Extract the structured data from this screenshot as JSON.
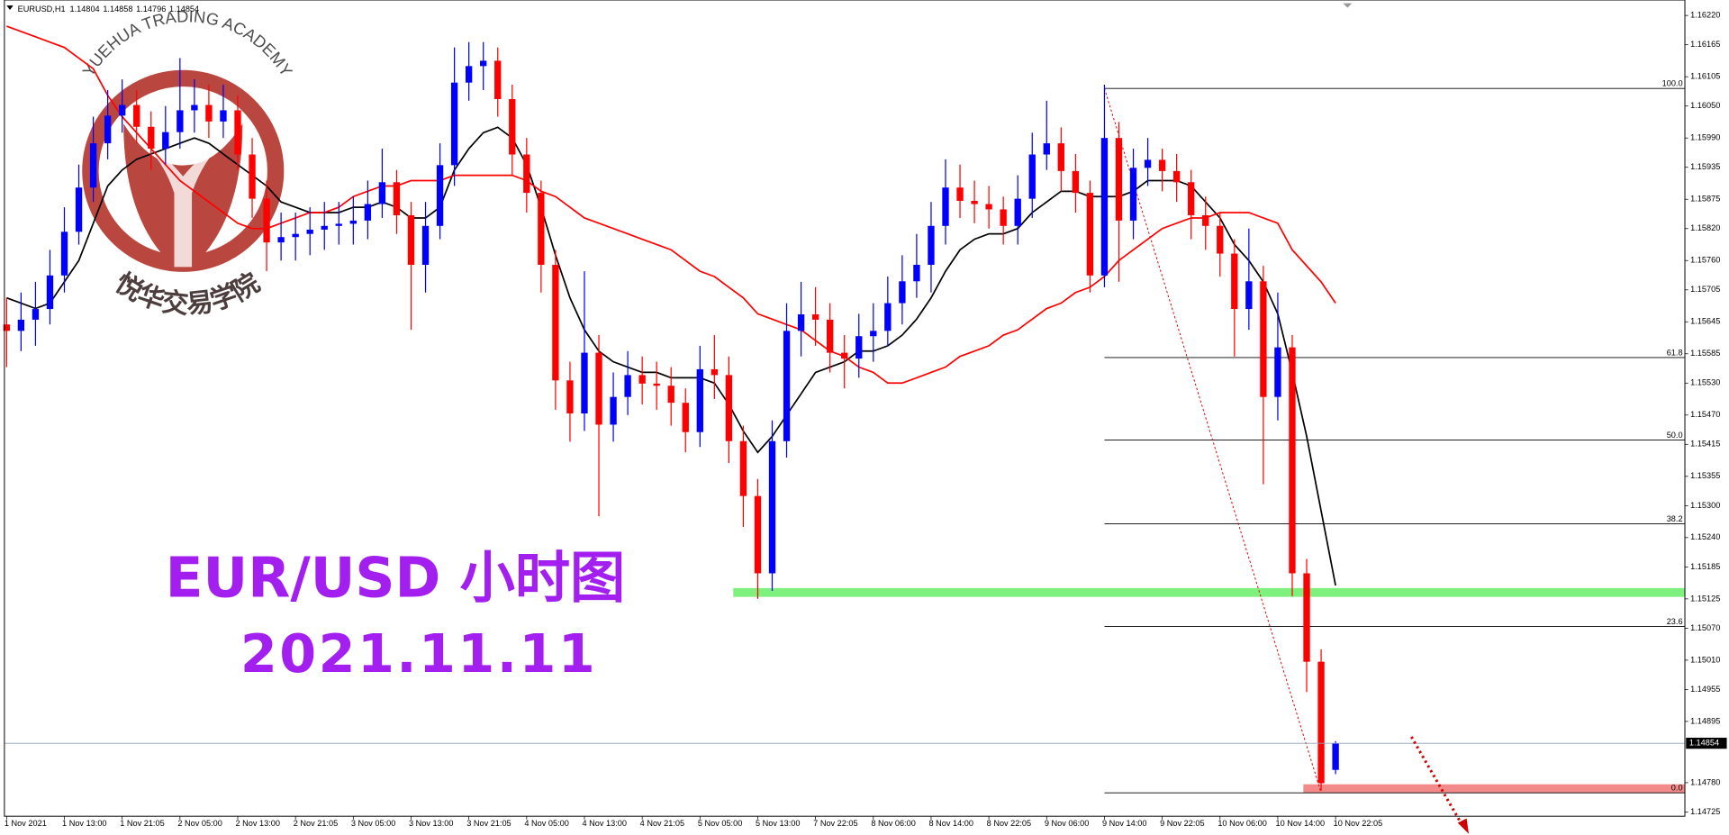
{
  "chart_data": {
    "type": "candlestick",
    "symbol": "EURUSD,H1",
    "title": "EUR/USD 小时图",
    "subtitle": "2021.11.11",
    "categories": [
      "1 Nov 2021",
      null,
      null,
      null,
      "1 Nov 13:00",
      null,
      null,
      null,
      "1 Nov 21:05",
      null,
      null,
      null,
      "2 Nov 05:00",
      null,
      null,
      null,
      "2 Nov 13:00",
      null,
      null,
      null,
      "2 Nov 21:05",
      null,
      null,
      null,
      "3 Nov 05:00",
      null,
      null,
      null,
      "3 Nov 13:00",
      null,
      null,
      null,
      "3 Nov 21:05",
      null,
      null,
      null,
      "4 Nov 05:00",
      null,
      null,
      null,
      "4 Nov 13:00",
      null,
      null,
      null,
      "4 Nov 21:05",
      null,
      null,
      null,
      "5 Nov 05:00",
      null,
      null,
      null,
      "5 Nov 13:00",
      null,
      null,
      null,
      "7 Nov 22:05",
      null,
      null,
      null,
      "8 Nov 06:00",
      null,
      null,
      null,
      "8 Nov 14:00",
      null,
      null,
      null,
      "8 Nov 22:05",
      null,
      null,
      null,
      "9 Nov 06:00",
      null,
      null,
      null,
      "9 Nov 14:00",
      null,
      null,
      null,
      "9 Nov 22:05",
      null,
      null,
      null,
      "10 Nov 06:00",
      null,
      null,
      null,
      "10 Nov 14:00",
      null,
      null,
      null,
      "10 Nov 22:05"
    ],
    "open": [
      1.1564,
      1.15628,
      1.15649,
      1.15669,
      1.15732,
      1.15814,
      1.15897,
      1.1598,
      1.16032,
      1.16052,
      1.16011,
      1.1597,
      1.16001,
      1.16042,
      1.16052,
      1.16021,
      1.16042,
      1.15959,
      1.15876,
      1.15794,
      1.15804,
      1.1581,
      1.15818,
      1.15825,
      1.15829,
      1.15835,
      1.15866,
      1.15907,
      1.15845,
      1.15752,
      1.15825,
      1.15939,
      1.16094,
      1.16125,
      1.16135,
      1.16063,
      1.15959,
      1.15887,
      1.15752,
      1.15535,
      1.15473,
      1.15587,
      1.15452,
      1.15504,
      1.15545,
      1.15529,
      1.15525,
      1.15493,
      1.15438,
      1.15556,
      1.15545,
      1.15421,
      1.15318,
      1.15173,
      1.15421,
      1.15628,
      1.15659,
      1.15649,
      1.15587,
      1.15576,
      1.15618,
      1.15628,
      1.1568,
      1.15721,
      1.15752,
      1.15825,
      1.15897,
      1.15872,
      1.15866,
      1.15856,
      1.15825,
      1.15876,
      1.15959,
      1.1598,
      1.15928,
      1.15887,
      1.15732,
      1.1599,
      1.15835,
      1.15934,
      1.15949,
      1.15928,
      1.15907,
      1.15845,
      1.15825,
      1.15773,
      1.15669,
      1.15721,
      1.15504,
      1.15597,
      1.15173,
      1.15007,
      1.14804
    ],
    "high": [
      1.1569,
      1.157,
      1.1572,
      1.1578,
      1.1586,
      1.1594,
      1.1603,
      1.1608,
      1.161,
      1.1608,
      1.1604,
      1.1605,
      1.1614,
      1.161,
      1.1609,
      1.1609,
      1.1607,
      1.1599,
      1.1591,
      1.1585,
      1.1585,
      1.1586,
      1.1587,
      1.1587,
      1.1588,
      1.1591,
      1.1597,
      1.1593,
      1.1587,
      1.1587,
      1.1598,
      1.1616,
      1.1617,
      1.1617,
      1.1616,
      1.1609,
      1.1599,
      1.1591,
      1.1578,
      1.1557,
      1.1574,
      1.1562,
      1.1555,
      1.1559,
      1.1558,
      1.1557,
      1.1556,
      1.1552,
      1.156,
      1.1562,
      1.1558,
      1.1545,
      1.1535,
      1.1546,
      1.1568,
      1.1572,
      1.1571,
      1.1568,
      1.1562,
      1.1566,
      1.1568,
      1.1573,
      1.1577,
      1.1581,
      1.1587,
      1.1595,
      1.1594,
      1.1591,
      1.159,
      1.1588,
      1.1592,
      1.16,
      1.1606,
      1.1601,
      1.1596,
      1.1591,
      1.1609,
      1.1602,
      1.1597,
      1.1599,
      1.1597,
      1.1596,
      1.1593,
      1.1588,
      1.1585,
      1.158,
      1.1582,
      1.1575,
      1.157,
      1.1562,
      1.152,
      1.1503,
      1.14858
    ],
    "low": [
      1.1556,
      1.1559,
      1.156,
      1.1564,
      1.157,
      1.1579,
      1.1587,
      1.1595,
      1.16,
      1.1598,
      1.1593,
      1.1594,
      1.1597,
      1.16,
      1.1599,
      1.1599,
      1.1593,
      1.1584,
      1.1574,
      1.1576,
      1.1576,
      1.1577,
      1.1578,
      1.1579,
      1.1579,
      1.158,
      1.1584,
      1.1581,
      1.1563,
      1.157,
      1.158,
      1.159,
      1.1606,
      1.1608,
      1.1603,
      1.1592,
      1.1585,
      1.157,
      1.1548,
      1.1542,
      1.1544,
      1.1528,
      1.1542,
      1.1547,
      1.1549,
      1.1548,
      1.1545,
      1.154,
      1.1541,
      1.155,
      1.1538,
      1.1526,
      1.15125,
      1.1514,
      1.1539,
      1.1558,
      1.156,
      1.1555,
      1.1552,
      1.1554,
      1.1557,
      1.156,
      1.1564,
      1.1569,
      1.157,
      1.1579,
      1.1584,
      1.1583,
      1.1582,
      1.1579,
      1.1579,
      1.1584,
      1.1593,
      1.1589,
      1.1585,
      1.157,
      1.1571,
      1.1572,
      1.158,
      1.159,
      1.1589,
      1.1587,
      1.158,
      1.1578,
      1.1573,
      1.1558,
      1.1563,
      1.1534,
      1.1546,
      1.1513,
      1.1495,
      1.14765,
      1.14796
    ],
    "close": [
      1.15628,
      1.15649,
      1.15669,
      1.15732,
      1.15814,
      1.15897,
      1.1598,
      1.16032,
      1.16052,
      1.16011,
      1.1597,
      1.16001,
      1.16042,
      1.16052,
      1.16021,
      1.16042,
      1.15959,
      1.15876,
      1.15794,
      1.15804,
      1.1581,
      1.15818,
      1.15825,
      1.15829,
      1.15835,
      1.15866,
      1.15907,
      1.15845,
      1.15752,
      1.15825,
      1.15939,
      1.16094,
      1.16125,
      1.16135,
      1.16063,
      1.15959,
      1.15887,
      1.15752,
      1.15535,
      1.15473,
      1.15587,
      1.15452,
      1.15504,
      1.15545,
      1.15529,
      1.15525,
      1.15493,
      1.15438,
      1.15556,
      1.15545,
      1.15421,
      1.15318,
      1.15173,
      1.15421,
      1.15628,
      1.15659,
      1.15649,
      1.15587,
      1.15576,
      1.15618,
      1.15628,
      1.1568,
      1.15721,
      1.15752,
      1.15825,
      1.15897,
      1.15872,
      1.15866,
      1.15856,
      1.15825,
      1.15876,
      1.15959,
      1.1598,
      1.15928,
      1.15887,
      1.15732,
      1.1599,
      1.15835,
      1.15934,
      1.15949,
      1.15928,
      1.15907,
      1.15845,
      1.15825,
      1.15773,
      1.15669,
      1.15721,
      1.15504,
      1.15597,
      1.15173,
      1.15007,
      1.14779,
      1.14854
    ],
    "up_color": "#0000ff",
    "down_color": "#ff0000",
    "series": [
      {
        "color": "#000000",
        "values": [
          1.1569,
          1.1568,
          1.1567,
          1.1568,
          1.1572,
          1.1576,
          1.1583,
          1.159,
          1.1593,
          1.1595,
          1.1596,
          1.1597,
          1.1598,
          1.1599,
          1.1598,
          1.1596,
          1.1594,
          1.1592,
          1.159,
          1.1587,
          1.1586,
          1.1585,
          1.1585,
          1.1585,
          1.1586,
          1.1586,
          1.1587,
          1.1586,
          1.1584,
          1.1584,
          1.1586,
          1.1593,
          1.1597,
          1.16,
          1.1601,
          1.1599,
          1.1594,
          1.1586,
          1.1577,
          1.1569,
          1.1563,
          1.1559,
          1.1557,
          1.1556,
          1.1555,
          1.1555,
          1.1554,
          1.1554,
          1.1554,
          1.1553,
          1.1549,
          1.1544,
          1.154,
          1.1543,
          1.1547,
          1.1551,
          1.1555,
          1.1556,
          1.1557,
          1.1559,
          1.1559,
          1.156,
          1.1562,
          1.1565,
          1.1569,
          1.1574,
          1.1578,
          1.158,
          1.1581,
          1.1581,
          1.1582,
          1.1585,
          1.1587,
          1.1589,
          1.1589,
          1.1588,
          1.1588,
          1.1588,
          1.1589,
          1.1591,
          1.1591,
          1.1591,
          1.159,
          1.1587,
          1.1584,
          1.1579,
          1.1576,
          1.1572,
          1.1566,
          1.1555,
          1.1543,
          1.1529,
          1.1515
        ]
      },
      {
        "color": "#ff0000",
        "values": [
          1.162,
          1.1619,
          1.1618,
          1.1617,
          1.1616,
          1.1614,
          1.1612,
          1.1607,
          1.1603,
          1.16,
          1.1597,
          1.1594,
          1.1591,
          1.1589,
          1.1587,
          1.1585,
          1.1583,
          1.1582,
          1.1582,
          1.1583,
          1.1584,
          1.1585,
          1.1585,
          1.1586,
          1.1588,
          1.1589,
          1.159,
          1.159,
          1.1591,
          1.1591,
          1.1591,
          1.1592,
          1.1592,
          1.1592,
          1.1592,
          1.1592,
          1.1591,
          1.1589,
          1.1588,
          1.1586,
          1.1584,
          1.1583,
          1.1582,
          1.1581,
          1.158,
          1.1579,
          1.1578,
          1.1576,
          1.1574,
          1.1573,
          1.1571,
          1.1569,
          1.1566,
          1.1565,
          1.1564,
          1.1563,
          1.1561,
          1.1559,
          1.1558,
          1.1556,
          1.1555,
          1.1553,
          1.1553,
          1.1554,
          1.1555,
          1.1556,
          1.1558,
          1.1559,
          1.156,
          1.1562,
          1.1563,
          1.1565,
          1.1567,
          1.1568,
          1.157,
          1.1571,
          1.1573,
          1.1576,
          1.1578,
          1.158,
          1.1582,
          1.1583,
          1.1584,
          1.1584,
          1.1585,
          1.1585,
          1.1585,
          1.1584,
          1.1583,
          1.1578,
          1.1575,
          1.1572,
          1.1568
        ]
      }
    ],
    "ylim": [
      1.14717,
      1.16249
    ],
    "yticks": [
      {
        "value": 1.1622,
        "label": "1.16220"
      },
      1.16165,
      1.16105,
      {
        "value": 1.1605,
        "label": "1.16050"
      },
      {
        "value": 1.1599,
        "label": "1.15990"
      },
      1.15935,
      1.15875,
      {
        "value": 1.1582,
        "label": "1.15820"
      },
      {
        "value": 1.1576,
        "label": "1.15760"
      },
      1.15705,
      1.15645,
      1.15585,
      {
        "value": 1.1553,
        "label": "1.15530"
      },
      {
        "value": 1.1547,
        "label": "1.15470"
      },
      1.15415,
      1.15355,
      {
        "value": 1.153,
        "label": "1.15300"
      },
      {
        "value": 1.1524,
        "label": "1.15240"
      },
      1.15185,
      1.15125,
      {
        "value": 1.1507,
        "label": "1.15070"
      },
      {
        "value": 1.1501,
        "label": "1.15010"
      },
      1.14955,
      1.14895,
      {
        "value": 1.1478,
        "label": "1.14780"
      },
      1.14725
    ],
    "fibonacci": {
      "levels": [
        {
          "value": 100,
          "label": "100.0"
        },
        61.8,
        {
          "value": 50,
          "label": "50.0"
        },
        38.2,
        23.6,
        {
          "value": 0,
          "label": "0.0"
        }
      ],
      "prices": [
        1.16083,
        1.15578,
        1.15423,
        1.15266,
        1.15073,
        1.14761
      ],
      "color": "#000000"
    },
    "support": 1.15137,
    "support_color": "#7ef07e",
    "target_zone": [
      1.14761,
      1.14777
    ],
    "target_color": "#f28a8a",
    "watermark": {
      "text_en": "YUEHUA TRADING ACADEMY",
      "text_cn": "悦华交易学院",
      "color": "#b3342b"
    }
  }
}
